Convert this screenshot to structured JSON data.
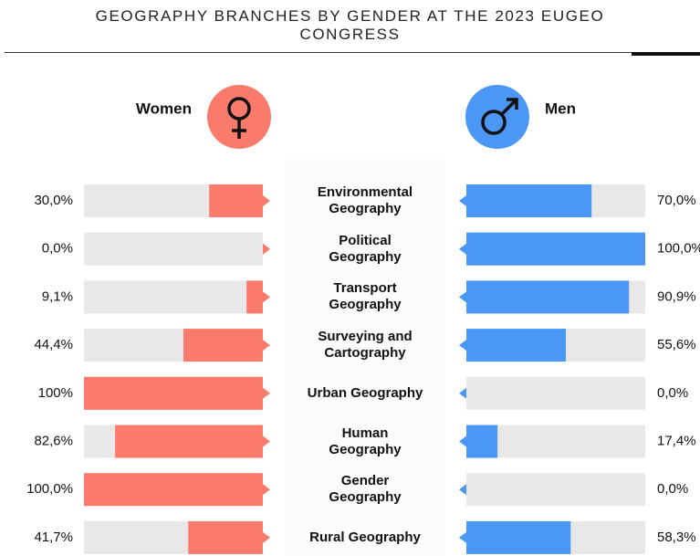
{
  "chart_data": {
    "type": "butterfly",
    "title": "GEOGRAPHY BRANCHES BY GENDER AT THE 2023 EUGEO CONGRESS",
    "categories": [
      "Environmental Geography",
      "Political Geography",
      "Transport Geography",
      "Surveying and Cartography",
      "Urban Geography",
      "Human Geography",
      "Gender Geography",
      "Rural Geography"
    ],
    "xlim": [
      0,
      100
    ],
    "series": [
      {
        "name": "Women",
        "color": "#fa7a6b",
        "values": [
          30,
          0,
          9.1,
          44.4,
          100,
          82.6,
          100,
          41.7
        ],
        "value_labels": [
          "30,0%",
          "0,0%",
          "9,1%",
          "44,4%",
          "100%",
          "82,6%",
          "100,0%",
          "41,7%"
        ]
      },
      {
        "name": "Men",
        "color": "#4a97f5",
        "values": [
          70,
          100,
          90.9,
          55.6,
          0,
          17.4,
          0,
          58.3
        ],
        "value_labels": [
          "70,0%",
          "100,0%",
          "90,9%",
          "55,6%",
          "0,0%",
          "17,4%",
          "0,0%",
          "58,3%"
        ]
      }
    ]
  }
}
